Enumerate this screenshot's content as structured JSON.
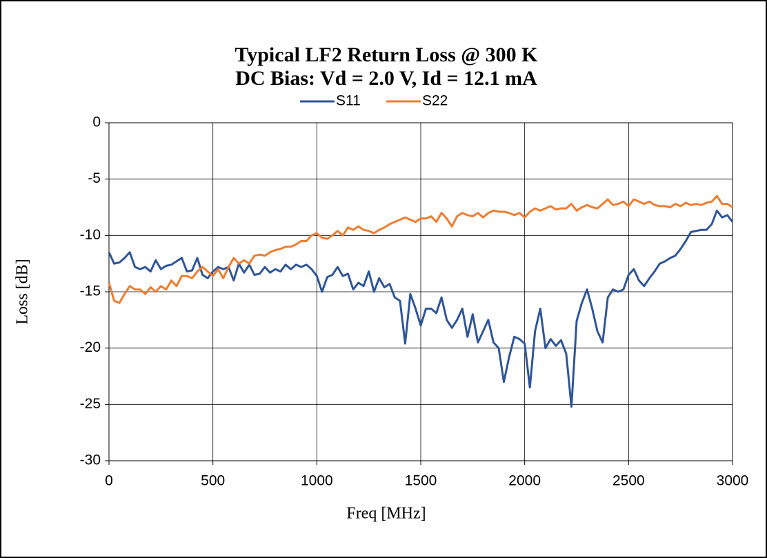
{
  "chart_data": {
    "type": "line",
    "title": "Typical LF2 Return Loss @ 300 K",
    "subtitle": "DC Bias: Vd = 2.0 V, Id = 12.1 mA",
    "x_label": "Freq [MHz]",
    "y_label": "Loss [dB]",
    "xlim": [
      0,
      3000
    ],
    "xticks": [
      0,
      500,
      1000,
      1500,
      2000,
      2500,
      3000
    ],
    "ylim": [
      -30,
      0
    ],
    "yticks": [
      0,
      -5,
      -10,
      -15,
      -20,
      -25,
      -30
    ],
    "grid": true,
    "legend": "top",
    "x": [
      0,
      25,
      50,
      75,
      100,
      125,
      150,
      175,
      200,
      225,
      250,
      275,
      300,
      325,
      350,
      375,
      400,
      425,
      450,
      475,
      500,
      525,
      550,
      575,
      600,
      625,
      650,
      675,
      700,
      725,
      750,
      775,
      800,
      825,
      850,
      875,
      900,
      925,
      950,
      975,
      1000,
      1025,
      1050,
      1075,
      1100,
      1125,
      1150,
      1175,
      1200,
      1225,
      1250,
      1275,
      1300,
      1325,
      1350,
      1375,
      1400,
      1425,
      1450,
      1475,
      1500,
      1525,
      1550,
      1575,
      1600,
      1625,
      1650,
      1675,
      1700,
      1725,
      1750,
      1775,
      1800,
      1825,
      1850,
      1875,
      1900,
      1925,
      1950,
      1975,
      2000,
      2025,
      2050,
      2075,
      2100,
      2125,
      2150,
      2175,
      2200,
      2225,
      2250,
      2275,
      2300,
      2325,
      2350,
      2375,
      2400,
      2425,
      2450,
      2475,
      2500,
      2525,
      2550,
      2575,
      2600,
      2625,
      2650,
      2675,
      2700,
      2725,
      2750,
      2775,
      2800,
      2825,
      2850,
      2875,
      2900,
      2925,
      2950,
      2975,
      3000
    ],
    "series": [
      {
        "name": "S11",
        "color": "#2f5597",
        "values": [
          -11.5,
          -12.5,
          -12.4,
          -12.0,
          -11.5,
          -12.8,
          -13.0,
          -12.8,
          -13.2,
          -12.2,
          -13.0,
          -12.7,
          -12.6,
          -12.3,
          -12.0,
          -13.2,
          -13.1,
          -12.0,
          -13.5,
          -13.8,
          -13.2,
          -12.8,
          -13.0,
          -12.8,
          -14.0,
          -12.5,
          -13.3,
          -12.6,
          -13.5,
          -13.4,
          -12.8,
          -13.3,
          -13.0,
          -13.2,
          -12.6,
          -13.0,
          -12.6,
          -12.8,
          -12.6,
          -13.0,
          -13.6,
          -15.0,
          -13.7,
          -13.5,
          -12.8,
          -13.6,
          -13.4,
          -14.8,
          -14.2,
          -14.5,
          -13.2,
          -15.0,
          -13.8,
          -14.6,
          -14.3,
          -15.5,
          -15.8,
          -19.6,
          -15.2,
          -16.5,
          -18.0,
          -16.5,
          -16.5,
          -16.9,
          -15.5,
          -17.5,
          -18.2,
          -17.5,
          -16.5,
          -19.0,
          -17.0,
          -19.5,
          -18.5,
          -17.5,
          -19.5,
          -20.0,
          -23.0,
          -20.8,
          -19.0,
          -19.2,
          -19.6,
          -23.5,
          -18.5,
          -16.5,
          -20.0,
          -19.2,
          -19.8,
          -19.3,
          -20.5,
          -25.2,
          -17.6,
          -16.0,
          -14.8,
          -16.5,
          -18.5,
          -19.5,
          -15.5,
          -14.8,
          -15.0,
          -14.8,
          -13.5,
          -13.0,
          -14.0,
          -14.5,
          -13.8,
          -13.2,
          -12.5,
          -12.3,
          -12.0,
          -11.8,
          -11.2,
          -10.5,
          -9.7,
          -9.6,
          -9.5,
          -9.5,
          -9.0,
          -7.8,
          -8.4,
          -8.2,
          -8.8
        ]
      },
      {
        "name": "S22",
        "color": "#ed7d31",
        "values": [
          -14.2,
          -15.8,
          -16.0,
          -15.2,
          -14.5,
          -14.8,
          -14.8,
          -15.2,
          -14.6,
          -15.0,
          -14.5,
          -14.8,
          -14.0,
          -14.5,
          -13.6,
          -13.6,
          -13.8,
          -13.2,
          -12.8,
          -13.2,
          -13.6,
          -13.0,
          -13.8,
          -12.8,
          -12.0,
          -12.5,
          -12.2,
          -12.5,
          -11.8,
          -11.7,
          -11.8,
          -11.5,
          -11.3,
          -11.2,
          -11.0,
          -11.0,
          -10.8,
          -10.5,
          -10.5,
          -10.0,
          -9.8,
          -10.2,
          -10.3,
          -10.0,
          -9.6,
          -10.0,
          -9.3,
          -9.5,
          -9.2,
          -9.5,
          -9.6,
          -9.8,
          -9.5,
          -9.3,
          -9.0,
          -8.8,
          -8.6,
          -8.4,
          -8.6,
          -8.8,
          -8.5,
          -8.5,
          -8.3,
          -8.8,
          -8.0,
          -8.5,
          -9.2,
          -8.3,
          -8.0,
          -8.2,
          -8.3,
          -8.0,
          -8.4,
          -8.0,
          -7.8,
          -7.9,
          -7.9,
          -8.0,
          -8.2,
          -8.0,
          -8.4,
          -7.9,
          -7.6,
          -7.8,
          -7.6,
          -7.4,
          -7.7,
          -7.6,
          -7.6,
          -7.2,
          -7.8,
          -7.5,
          -7.3,
          -7.5,
          -7.6,
          -7.2,
          -6.8,
          -7.3,
          -7.2,
          -7.0,
          -7.4,
          -6.8,
          -7.0,
          -7.2,
          -7.0,
          -7.3,
          -7.4,
          -7.4,
          -7.5,
          -7.2,
          -7.4,
          -7.1,
          -7.3,
          -7.2,
          -7.3,
          -7.1,
          -7.0,
          -6.5,
          -7.2,
          -7.2,
          -7.5
        ]
      }
    ]
  }
}
